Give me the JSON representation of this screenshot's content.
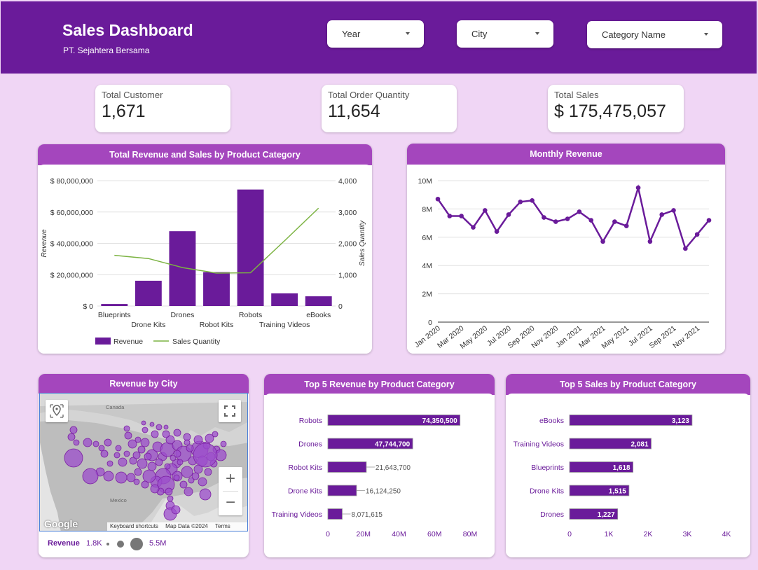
{
  "header": {
    "title": "Sales Dashboard",
    "subtitle": "PT. Sejahtera Bersama",
    "background": "#6a1b9a"
  },
  "filters": [
    {
      "label": "Year"
    },
    {
      "label": "City"
    },
    {
      "label": "Category Name"
    }
  ],
  "kpis": [
    {
      "label": "Total Customer",
      "value": "1,671"
    },
    {
      "label": "Total Order Quantity",
      "value": "11,654"
    },
    {
      "label": "Total Sales",
      "value": "$ 175,475,057"
    }
  ],
  "colors": {
    "bar": "#6a1b9a",
    "line": "#7cb342",
    "panel_head": "#a446bd",
    "axis_label": "#6a1b9a"
  },
  "panels": {
    "revenue_sales": "Total Revenue and Sales by Product Category",
    "monthly_revenue": "Monthly Revenue",
    "revenue_city": "Revenue by City",
    "top5_revenue": "Top 5 Revenue by Product Category",
    "top5_sales": "Top 5 Sales by Product Category"
  },
  "chart_data": [
    {
      "type": "bar",
      "id": "revenue_sales",
      "categories": [
        "Blueprints",
        "Drone Kits",
        "Drones",
        "Robot Kits",
        "Robots",
        "Training Videos",
        "eBooks"
      ],
      "series": [
        {
          "name": "Revenue",
          "type": "bar",
          "axis": "left",
          "values": [
            1300000,
            16124250,
            47744700,
            21643700,
            74350500,
            8071615,
            6200000
          ]
        },
        {
          "name": "Sales Quantity",
          "type": "line",
          "axis": "right",
          "values": [
            1618,
            1515,
            1227,
            1050,
            1060,
            2081,
            3123
          ]
        }
      ],
      "ylabel": "Revenue",
      "y2label": "Sales Quantity",
      "ylim": [
        0,
        80000000
      ],
      "y2lim": [
        0,
        4000
      ],
      "yticks": [
        "$ 0",
        "$ 20,000,000",
        "$ 40,000,000",
        "$ 60,000,000",
        "$ 80,000,000"
      ],
      "y2ticks": [
        "0",
        "1,000",
        "2,000",
        "3,000",
        "4,000"
      ],
      "legend": [
        "Revenue",
        "Sales Quantity"
      ],
      "legend_position": "bottom-left"
    },
    {
      "type": "line",
      "id": "monthly_revenue",
      "x": [
        "Jan 2020",
        "Feb 2020",
        "Mar 2020",
        "Apr 2020",
        "May 2020",
        "Jun 2020",
        "Jul 2020",
        "Aug 2020",
        "Sep 2020",
        "Oct 2020",
        "Nov 2020",
        "Dec 2020",
        "Jan 2021",
        "Feb 2021",
        "Mar 2021",
        "Apr 2021",
        "May 2021",
        "Jun 2021",
        "Jul 2021",
        "Aug 2021",
        "Sep 2021",
        "Oct 2021",
        "Nov 2021",
        "Dec 2021"
      ],
      "xticks": [
        "Jan 2020",
        "Mar 2020",
        "May 2020",
        "Jul 2020",
        "Sep 2020",
        "Nov 2020",
        "Jan 2021",
        "Mar 2021",
        "May 2021",
        "Jul 2021",
        "Sep 2021",
        "Nov 2021"
      ],
      "values": [
        8.7,
        7.5,
        7.5,
        6.7,
        7.9,
        6.4,
        7.6,
        8.5,
        8.6,
        7.4,
        7.1,
        7.3,
        7.8,
        7.2,
        5.7,
        7.1,
        6.8,
        9.5,
        5.7,
        7.6,
        7.9,
        5.2,
        6.2,
        7.2
      ],
      "unit": "M",
      "ylim": [
        0,
        10
      ],
      "yticks": [
        "0",
        "2M",
        "4M",
        "6M",
        "8M",
        "10M"
      ]
    },
    {
      "type": "bar",
      "id": "top5_revenue",
      "orientation": "horizontal",
      "categories": [
        "Robots",
        "Drones",
        "Robot Kits",
        "Drone Kits",
        "Training Videos"
      ],
      "values": [
        74350500,
        47744700,
        21643700,
        16124250,
        8071615
      ],
      "value_labels": [
        "74,350,500",
        "47,744,700",
        "21,643,700",
        "16,124,250",
        "8,071,615"
      ],
      "xlim": [
        0,
        80000000
      ],
      "xticks": [
        "0",
        "20M",
        "40M",
        "60M",
        "80M"
      ]
    },
    {
      "type": "bar",
      "id": "top5_sales",
      "orientation": "horizontal",
      "categories": [
        "eBooks",
        "Training Videos",
        "Blueprints",
        "Drone Kits",
        "Drones"
      ],
      "values": [
        3123,
        2081,
        1618,
        1515,
        1227
      ],
      "value_labels": [
        "3,123",
        "2,081",
        "1,618",
        "1,515",
        "1,227"
      ],
      "xlim": [
        0,
        4000
      ],
      "xticks": [
        "0",
        "1K",
        "2K",
        "3K",
        "4K"
      ]
    }
  ],
  "map": {
    "labels": {
      "canada": "Canada",
      "mexico": "Mexico"
    },
    "logo": "Google",
    "footer": {
      "shortcuts": "Keyboard shortcuts",
      "data": "Map Data ©2024",
      "terms": "Terms"
    },
    "legend": {
      "label": "Revenue",
      "min": "1.8K",
      "max": "5.5M"
    },
    "controls": {
      "zoom_in": "+",
      "zoom_out": "−"
    }
  }
}
